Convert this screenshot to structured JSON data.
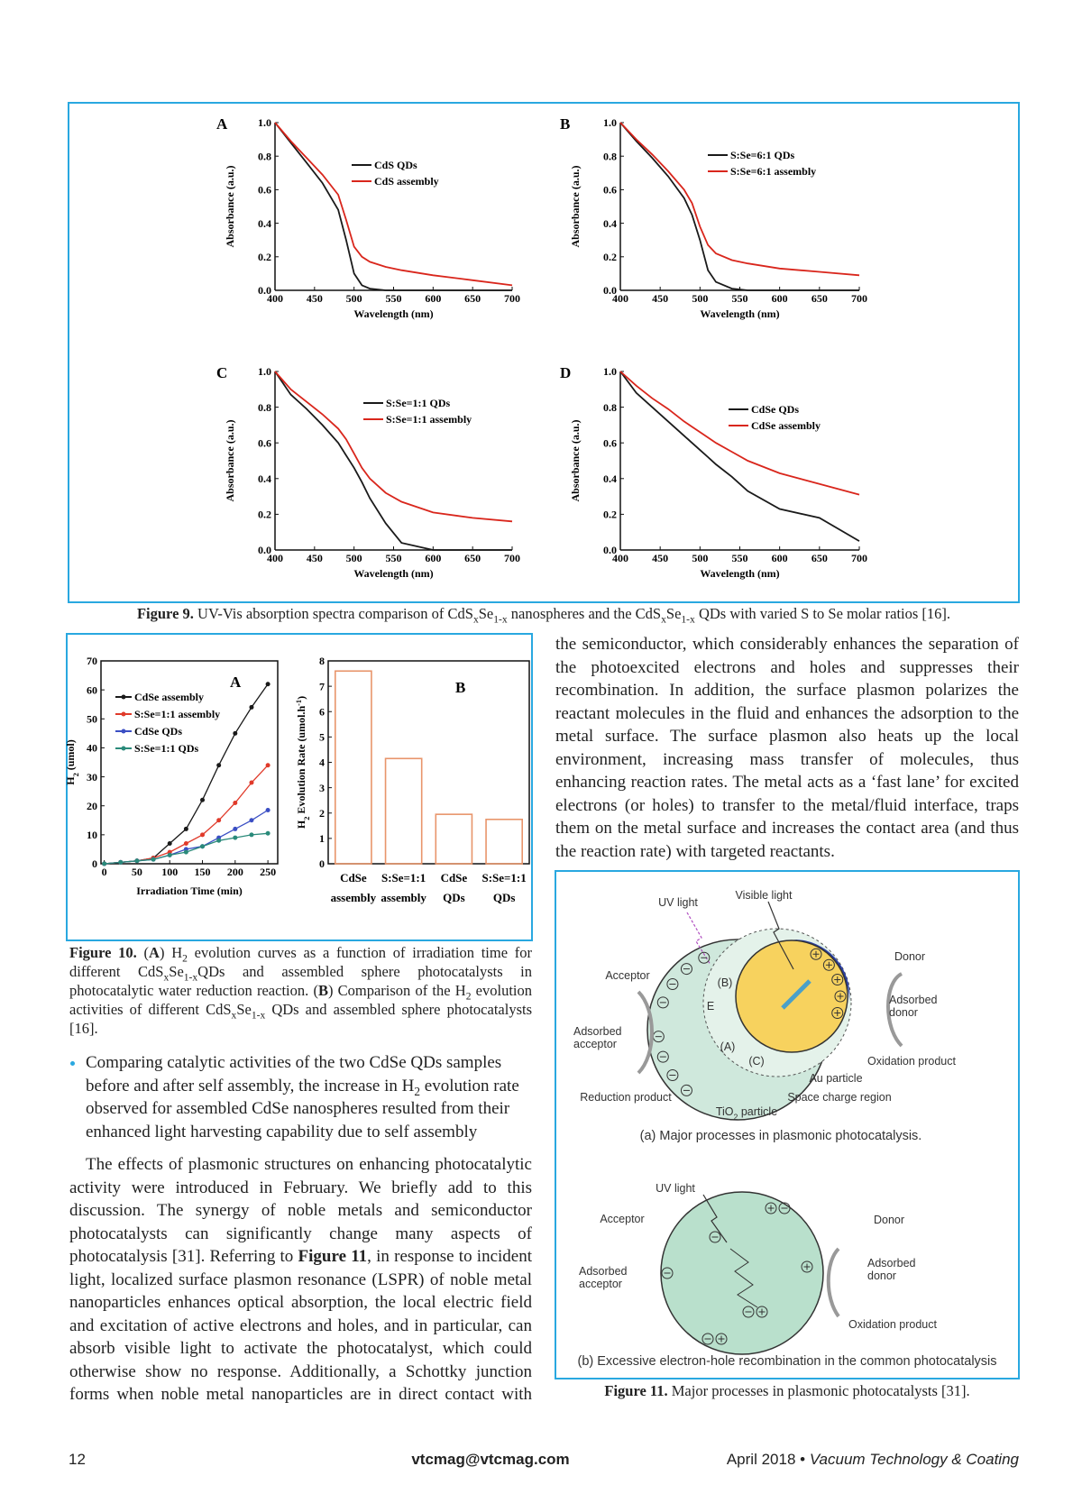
{
  "chart_data": [
    {
      "type": "line",
      "panel_label": "A",
      "xlabel": "Wavelength (nm)",
      "ylabel": "Absorbance (a.u.)",
      "x": [
        400,
        420,
        440,
        460,
        480,
        490,
        500,
        510,
        520,
        540,
        560,
        600,
        650,
        700
      ],
      "xlim": [
        400,
        700
      ],
      "xticks": [
        400,
        450,
        500,
        550,
        600,
        650,
        700
      ],
      "ylim": [
        0,
        1
      ],
      "yticks": [
        {
          "value": 0,
          "label": "0.0"
        },
        0.2,
        0.4,
        0.6,
        0.8,
        {
          "value": 1,
          "label": "1.0"
        }
      ],
      "series": [
        {
          "name": "CdS QDs",
          "color": "#1a1a1a",
          "values": [
            1.0,
            0.88,
            0.76,
            0.64,
            0.48,
            0.3,
            0.1,
            0.03,
            0.01,
            0.0,
            0.0,
            0.0,
            0.0,
            0.0
          ]
        },
        {
          "name": "CdS assembly",
          "color": "#d9261c",
          "values": [
            1.0,
            0.89,
            0.79,
            0.69,
            0.57,
            0.42,
            0.26,
            0.2,
            0.17,
            0.14,
            0.12,
            0.09,
            0.06,
            0.03
          ]
        }
      ]
    },
    {
      "type": "line",
      "panel_label": "B",
      "xlabel": "Wavelength (nm)",
      "ylabel": "Absorbance (a.u.)",
      "x": [
        400,
        420,
        440,
        460,
        480,
        490,
        500,
        510,
        520,
        540,
        560,
        600,
        650,
        700
      ],
      "xlim": [
        400,
        700
      ],
      "xticks": [
        400,
        450,
        500,
        550,
        600,
        650,
        700
      ],
      "ylim": [
        0,
        1
      ],
      "yticks": [
        {
          "value": 0,
          "label": "0.0"
        },
        0.2,
        0.4,
        0.6,
        0.8,
        {
          "value": 1,
          "label": "1.0"
        }
      ],
      "series": [
        {
          "name": "S:Se=6:1 QDs",
          "color": "#1a1a1a",
          "values": [
            1.0,
            0.89,
            0.79,
            0.68,
            0.55,
            0.45,
            0.3,
            0.12,
            0.05,
            0.01,
            0.0,
            0.0,
            0.0,
            0.0
          ]
        },
        {
          "name": "S:Se=6:1 assembly",
          "color": "#d9261c",
          "values": [
            1.0,
            0.9,
            0.81,
            0.71,
            0.6,
            0.52,
            0.38,
            0.27,
            0.22,
            0.18,
            0.16,
            0.13,
            0.11,
            0.09
          ]
        }
      ]
    },
    {
      "type": "line",
      "panel_label": "C",
      "xlabel": "Wavelength (nm)",
      "ylabel": "Absorbance (a.u.)",
      "x": [
        400,
        420,
        440,
        460,
        480,
        490,
        500,
        510,
        520,
        540,
        560,
        600,
        650,
        700
      ],
      "xlim": [
        400,
        700
      ],
      "xticks": [
        400,
        450,
        500,
        550,
        600,
        650,
        700
      ],
      "ylim": [
        0,
        1
      ],
      "yticks": [
        {
          "value": 0,
          "label": "0.0"
        },
        0.2,
        0.4,
        0.6,
        0.8,
        {
          "value": 1,
          "label": "1.0"
        }
      ],
      "series": [
        {
          "name": "S:Se=1:1 QDs",
          "color": "#1a1a1a",
          "values": [
            1.0,
            0.87,
            0.79,
            0.7,
            0.6,
            0.53,
            0.46,
            0.38,
            0.29,
            0.15,
            0.04,
            0.0,
            0.0,
            0.0
          ]
        },
        {
          "name": "S:Se=1:1 assembly",
          "color": "#d9261c",
          "values": [
            1.0,
            0.9,
            0.83,
            0.76,
            0.68,
            0.62,
            0.54,
            0.46,
            0.4,
            0.32,
            0.27,
            0.21,
            0.18,
            0.16
          ]
        }
      ]
    },
    {
      "type": "line",
      "panel_label": "D",
      "xlabel": "Wavelength (nm)",
      "ylabel": "Absorbance (a.u.)",
      "x": [
        400,
        420,
        440,
        460,
        480,
        490,
        500,
        510,
        520,
        540,
        560,
        600,
        650,
        700
      ],
      "xlim": [
        400,
        700
      ],
      "xticks": [
        400,
        450,
        500,
        550,
        600,
        650,
        700
      ],
      "ylim": [
        0,
        1
      ],
      "yticks": [
        {
          "value": 0,
          "label": "0.0"
        },
        0.2,
        0.4,
        0.6,
        0.8,
        {
          "value": 1,
          "label": "1.0"
        }
      ],
      "series": [
        {
          "name": "CdSe QDs",
          "color": "#1a1a1a",
          "values": [
            1.0,
            0.88,
            0.8,
            0.72,
            0.64,
            0.6,
            0.56,
            0.52,
            0.48,
            0.41,
            0.33,
            0.23,
            0.18,
            0.05
          ]
        },
        {
          "name": "CdSe assembly",
          "color": "#d9261c",
          "values": [
            1.0,
            0.92,
            0.85,
            0.79,
            0.72,
            0.69,
            0.66,
            0.63,
            0.6,
            0.55,
            0.5,
            0.43,
            0.37,
            0.31
          ]
        }
      ]
    },
    {
      "type": "line",
      "panel_label": "A",
      "xlabel": "Irradiation Time (min)",
      "ylabel": [
        "H",
        "2",
        " (umol)"
      ],
      "x": [
        0,
        25,
        50,
        75,
        100,
        125,
        150,
        175,
        200,
        225,
        250
      ],
      "xlim": [
        -5,
        265
      ],
      "xticks": [
        0,
        50,
        100,
        150,
        200,
        250
      ],
      "ylim": [
        0,
        70
      ],
      "yticks": [
        0,
        10,
        20,
        30,
        40,
        50,
        60,
        70
      ],
      "series": [
        {
          "name": "CdSe assembly",
          "color": "#1a1a1a",
          "values": [
            0,
            0.5,
            1,
            2,
            7,
            12,
            22,
            34,
            45,
            54,
            62
          ]
        },
        {
          "name": "S:Se=1:1 assembly",
          "color": "#e03a2a",
          "values": [
            0,
            0.5,
            1,
            2,
            4,
            7,
            10,
            15,
            21,
            28,
            34
          ]
        },
        {
          "name": "CdSe QDs",
          "color": "#3b4fc4",
          "values": [
            0,
            0.5,
            1,
            1.5,
            3,
            5,
            6,
            9,
            12,
            15,
            18.5
          ]
        },
        {
          "name": "S:Se=1:1 QDs",
          "color": "#2a8a7a",
          "values": [
            0,
            0.5,
            1,
            1.5,
            3,
            4,
            6,
            8,
            9,
            10,
            10.5
          ]
        }
      ]
    },
    {
      "type": "bar",
      "panel_label": "B",
      "ylabel": [
        "H",
        "2",
        " Evolution Rate (umol.h",
        "-1",
        ")"
      ],
      "categories": [
        [
          "CdSe",
          "assembly"
        ],
        [
          "S:Se=1:1",
          "assembly"
        ],
        [
          "CdSe",
          "QDs"
        ],
        [
          "S:Se=1:1",
          "QDs"
        ]
      ],
      "values": [
        7.6,
        4.15,
        1.95,
        1.75
      ],
      "color": "#e8956b",
      "ylim": [
        0,
        8
      ],
      "yticks": [
        0,
        1,
        2,
        3,
        4,
        5,
        6,
        7,
        8
      ]
    }
  ],
  "figure9": {
    "caption": [
      "Figure 9.",
      " UV-Vis absorption spectra comparison of CdS",
      "x",
      "Se",
      "1-x",
      " nanospheres and the CdS",
      "x",
      "Se",
      "1-x",
      " QDs with varied S to Se molar ratios [16]."
    ]
  },
  "figure10": {
    "caption": [
      "Figure 10.",
      " (",
      "A",
      ") H",
      "2",
      " evolution curves as a function of irradiation time for different CdS",
      "x",
      "Se",
      "1-x",
      "QDs and assembled sphere photocatalysts in photocatalytic water reduction reaction. (",
      "B",
      ") Comparison of the H",
      "2",
      " evolution activities of different CdS",
      "x",
      "Se",
      "1-x",
      " QDs and assembled sphere photocatalysts [16]."
    ]
  },
  "bullet": [
    "Comparing catalytic activities of the two CdSe QDs samples before and after self assembly, the increase in H",
    "2",
    " evolution rate observed for assembled CdSe nanospheres resulted from their enhanced light harvesting capability due to self assembly"
  ],
  "left_paragraph": [
    "The effects of plasmonic structures on enhancing photocatalytic activity were introduced in February. We briefly add to this discussion. The synergy of noble metals and semiconductor photocatalysts can significantly change many aspects of photocatalysis [31]. Referring to ",
    "Figure 11",
    ", in response to incident light, localized surface plasmon resonance (LSPR) of noble metal nanoparticles enhances optical absorption, the local electric field and excitation of active electrons and holes, and in particular, can absorb visible light to activate the photocatalyst, which could otherwise show no response. Additionally, a Schottky junction forms when noble metal nanoparticles are in direct contact with"
  ],
  "right_paragraph": "the semiconductor, which considerably enhances the separation of the photoexcited electrons and holes and suppresses their recombination. In addition, the surface plasmon polarizes the reactant molecules in the fluid and enhances the adsorption to the metal surface. The surface plasmon also heats up the local environment, increasing mass transfer of molecules, thus enhancing reaction rates. The metal acts as a ‘fast lane’ for excited electrons (or holes) to transfer to the metal/fluid interface, traps them on the metal surface and increases the contact area (and thus the reaction rate) with targeted reactants.",
  "figure11": {
    "panel_a": {
      "uv_light": "UV light",
      "visible_light": "Visible light",
      "donor": "Donor",
      "acceptor": "Acceptor",
      "b": "(B)",
      "e": "E",
      "adsorbed_donor": [
        "Adsorbed",
        "donor"
      ],
      "adsorbed_acceptor": [
        "Adsorbed",
        "acceptor"
      ],
      "a": "(A)",
      "c": "(C)",
      "oxidation_product": "Oxidation product",
      "au_particle": "Au particle",
      "reduction_product": "Reduction product",
      "space_charge_region": "Space charge region",
      "tio2_particle": [
        "TiO",
        "2",
        " particle"
      ],
      "caption": "(a) Major processes in plasmonic photocatalysis."
    },
    "panel_b": {
      "uv_light": "UV light",
      "acceptor": "Acceptor",
      "donor": "Donor",
      "adsorbed_acceptor": [
        "Adsorbed",
        "acceptor"
      ],
      "adsorbed_donor": [
        "Adsorbed",
        "donor"
      ],
      "oxidation_product": "Oxidation product",
      "caption": "(b) Excessive electron-hole recombination in the common photocatalysis"
    },
    "caption": [
      "Figure 11.",
      " Major processes in plasmonic photocatalysts [31]."
    ]
  },
  "footer": {
    "page": "12",
    "email": "vtcmag@vtcmag.com",
    "date": "April 2018",
    "separator": "•",
    "journal": "Vacuum Technology & Coating"
  }
}
